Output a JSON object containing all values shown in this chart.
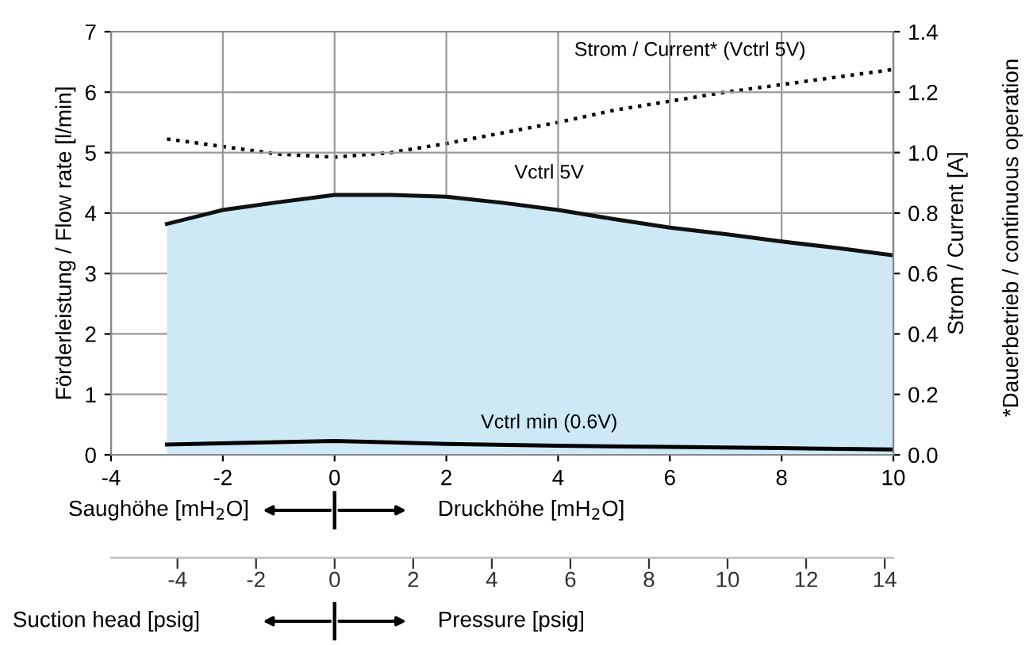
{
  "chart_data": {
    "type": "line",
    "xlabel": "Saughöhe [mH$_{2}$O]",
    "ylabel": "Förderleistung / Flow rate [l/min]",
    "y2label": "Strom / Current [A]",
    "x2label": "Suction head [psig]",
    "annotations": [
      "Druckhöhe [mH$_{2}$O]",
      "Pressure [psig]",
      "*Dauerbetrieb / continuous operation"
    ],
    "series": [
      {
        "name": "Vctrl 5V",
        "type": "area",
        "color": "#cde9f6",
        "x": [
          -3,
          -2,
          -1,
          0,
          1,
          2,
          3,
          4,
          5,
          6,
          7,
          8,
          9,
          10
        ],
        "values": [
          3.82,
          4.05,
          4.18,
          4.3,
          4.3,
          4.27,
          4.17,
          4.05,
          3.9,
          3.76,
          3.65,
          3.53,
          3.42,
          3.3
        ]
      },
      {
        "name": "Vctrl min (0.6V)",
        "color": "#000000",
        "x": [
          -3,
          0,
          2,
          4,
          6,
          8,
          10
        ],
        "values": [
          0.17,
          0.23,
          0.18,
          0.15,
          0.13,
          0.11,
          0.09
        ]
      },
      {
        "name": "Strom / Current* (Vctrl 5V)",
        "axis": "y2",
        "color": "#000000",
        "line_style": "dotted",
        "x": [
          -3,
          -2,
          -1,
          0,
          1,
          2,
          3,
          4,
          5,
          6,
          7,
          8,
          9,
          10
        ],
        "values": [
          1.045,
          1.02,
          0.995,
          0.985,
          1.0,
          1.03,
          1.065,
          1.1,
          1.14,
          1.17,
          1.2,
          1.225,
          1.25,
          1.275
        ]
      }
    ],
    "xlim": [
      -4,
      10
    ],
    "xticks": [
      -4,
      -2,
      0,
      2,
      4,
      6,
      8,
      10
    ],
    "ylim": [
      0,
      7
    ],
    "yticks": [
      0,
      1,
      2,
      3,
      4,
      5,
      6,
      7
    ],
    "y2lim": [
      0,
      1.4
    ],
    "y2ticks": [
      {
        "value": 0,
        "label": "0.0"
      },
      {
        "value": 0.2,
        "label": "0.2"
      },
      {
        "value": 0.4,
        "label": "0.4"
      },
      {
        "value": 0.6,
        "label": "0.6"
      },
      {
        "value": 0.8,
        "label": "0.8"
      },
      {
        "value": 1.0,
        "label": "1.0"
      },
      {
        "value": 1.2,
        "label": "1.2"
      },
      {
        "value": 1.4,
        "label": "1.4"
      }
    ],
    "x2lim": [
      -5.69,
      14.22
    ],
    "x2ticks": [
      -4,
      -2,
      0,
      2,
      4,
      6,
      8,
      10,
      12,
      14
    ],
    "grid": true,
    "legend": false
  }
}
